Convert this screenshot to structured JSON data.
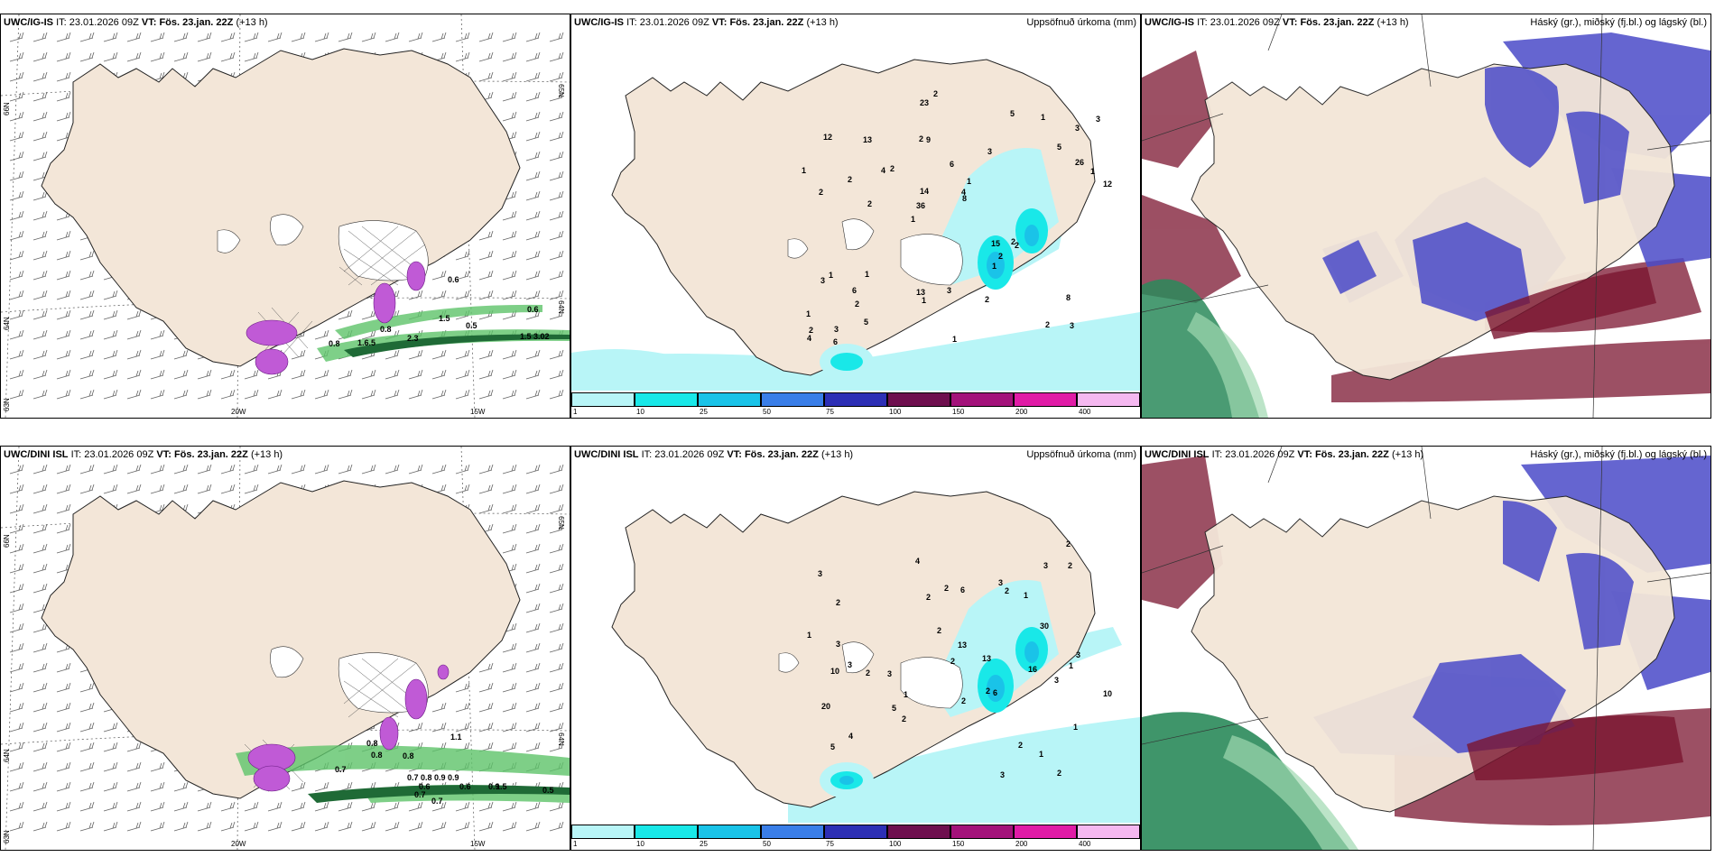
{
  "rows": [
    {
      "model": "UWC/IG-IS",
      "it_label": "IT:",
      "it_value": "23.01.2026 09Z",
      "vt_label": "VT:",
      "vt_value": "Fös. 23.jan. 22Z",
      "lead": "(+13 h)"
    },
    {
      "model": "UWC/DINI ISL",
      "it_label": "IT:",
      "it_value": "23.01.2026 09Z",
      "vt_label": "VT:",
      "vt_value": "Fös. 23.jan. 22Z",
      "lead": "(+13 h)"
    }
  ],
  "panel_titles": {
    "precip": "Uppsöfnuð úrkoma (mm)",
    "clouds": "Háský (gr.), miðský (fj.bl.) og lágský (bl.)"
  },
  "wind_panel_labels": {
    "lat_66": "66N",
    "lat_64": "64N",
    "lat_65_right": "65N",
    "lat_64_right": "64N",
    "lat_63": "63N",
    "lon_20": "20W",
    "lon_15": "15W"
  },
  "colorbar": {
    "ticks": [
      "1",
      "10",
      "25",
      "50",
      "75",
      "100",
      "150",
      "200",
      "400"
    ],
    "colors": [
      "#b8f5f7",
      "#19e8e8",
      "#1ac3e8",
      "#3a7ee8",
      "#2d2fb5",
      "#6e0f4e",
      "#a3127a",
      "#e01ba6",
      "#f5b8f0"
    ]
  },
  "colors": {
    "land": "#f3e6d8",
    "high_cloud": "#2a8a5a",
    "mid_cloud": "#7b1530",
    "low_cloud": "#4a4ac8",
    "precip_light": "#b8f5f7",
    "precip_heavy": "#19c3e8"
  },
  "precip_numbers_top": [
    "3",
    "2",
    "3",
    "1",
    "3",
    "3",
    "2",
    "6",
    "1",
    "2",
    "1",
    "2",
    "9",
    "1",
    "2",
    "12",
    "23",
    "12",
    "15",
    "26",
    "36",
    "13",
    "14",
    "13",
    "5",
    "1",
    "2",
    "8",
    "2",
    "1",
    "4",
    "2",
    "1",
    "5",
    "1",
    "4",
    "2",
    "1",
    "8",
    "3",
    "5",
    "3",
    "2",
    "2",
    "6",
    "6",
    "4",
    "3",
    "1",
    "2",
    "2",
    "1"
  ],
  "precip_numbers_bottom": [
    "2",
    "3",
    "2",
    "3",
    "1",
    "2",
    "4",
    "3",
    "1",
    "2",
    "2",
    "1",
    "2",
    "4",
    "13",
    "20",
    "16",
    "13",
    "1",
    "5",
    "2",
    "6",
    "30",
    "10",
    "3",
    "3",
    "2",
    "2",
    "2",
    "2",
    "6",
    "10",
    "5",
    "3",
    "2",
    "3",
    "1",
    "2",
    "3",
    "3",
    "1",
    "2"
  ],
  "wind_values_top": [
    "0.6",
    "0.6",
    "1.5",
    "0.5",
    "0.8",
    "1.6.5",
    "2.3",
    "1.5 3.02",
    "0.8"
  ],
  "wind_values_bottom": [
    "0.7",
    "1.1",
    "0.8",
    "0.8",
    "0.7 0.8 0.9 0.9",
    "0.7",
    "0.6",
    "0.6",
    "0.9",
    "1.5",
    "0.5",
    "0.7",
    "0.8"
  ]
}
